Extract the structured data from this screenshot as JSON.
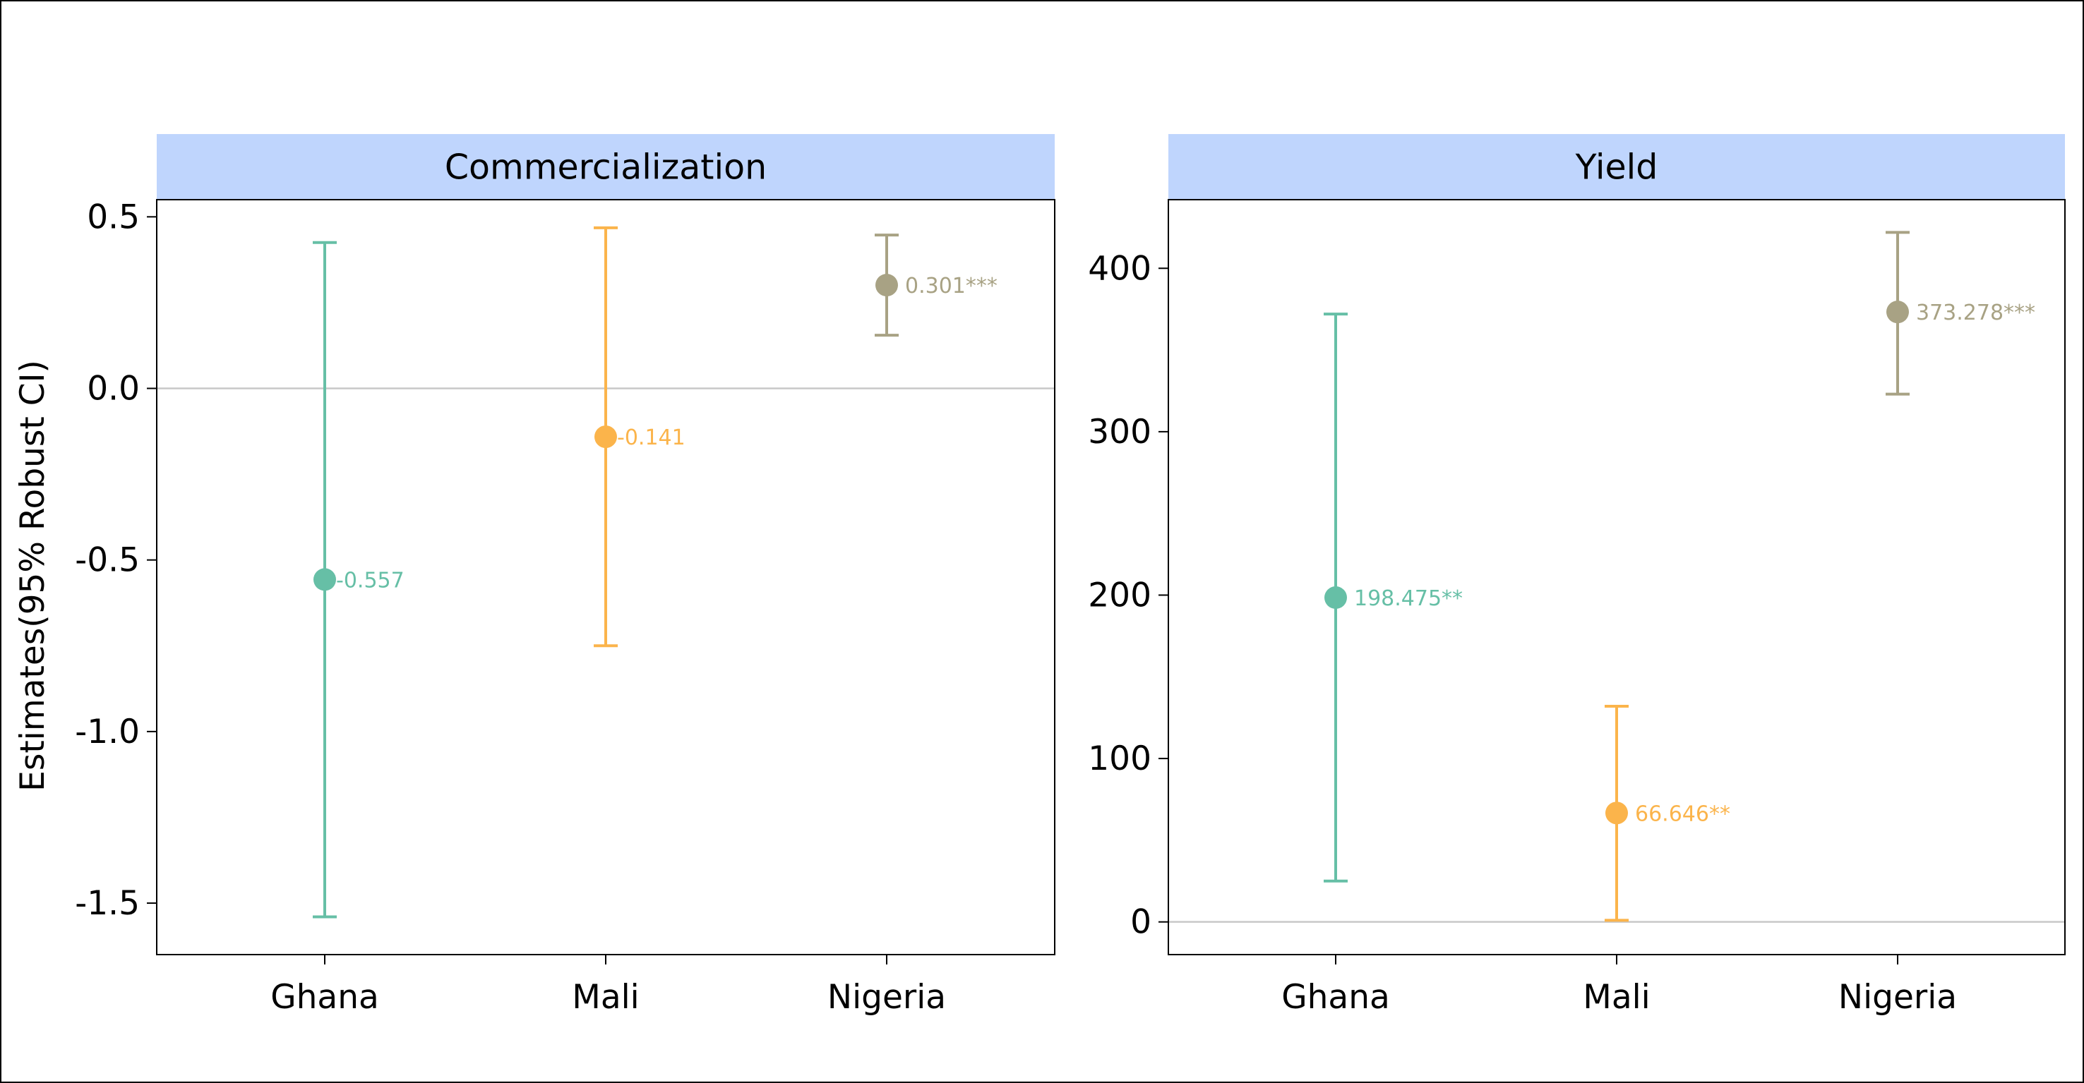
{
  "chart_data": {
    "type": "errorbar",
    "ylabel": "Estimates(95% Robust CI)",
    "categories": [
      "Ghana",
      "Mali",
      "Nigeria"
    ],
    "colors": {
      "Ghana": "#66bfa6",
      "Mali": "#fbb44b",
      "Nigeria": "#a8a284"
    },
    "grid": false,
    "panels": [
      {
        "title": "Commercialization",
        "ylim": [
          -1.65,
          0.55
        ],
        "yticks": [
          0.5,
          0.0,
          -0.5,
          -1.0,
          -1.5
        ],
        "ytick_labels": [
          "0.5",
          "0.0",
          "-0.5",
          "-1.0",
          "-1.5"
        ],
        "points": [
          {
            "category": "Ghana",
            "estimate": -0.557,
            "ci_low": -1.54,
            "ci_high": 0.425,
            "label": "-0.557"
          },
          {
            "category": "Mali",
            "estimate": -0.141,
            "ci_low": -0.75,
            "ci_high": 0.468,
            "label": "-0.141"
          },
          {
            "category": "Nigeria",
            "estimate": 0.301,
            "ci_low": 0.155,
            "ci_high": 0.447,
            "label": "0.301***"
          }
        ]
      },
      {
        "title": "Yield",
        "ylim": [
          -20,
          442
        ],
        "yticks": [
          400,
          300,
          200,
          100,
          0
        ],
        "ytick_labels": [
          "400",
          "300",
          "200",
          "100",
          "0"
        ],
        "points": [
          {
            "category": "Ghana",
            "estimate": 198.475,
            "ci_low": 25,
            "ci_high": 372,
            "label": "198.475**"
          },
          {
            "category": "Mali",
            "estimate": 66.646,
            "ci_low": 1,
            "ci_high": 132,
            "label": "66.646**"
          },
          {
            "category": "Nigeria",
            "estimate": 373.278,
            "ci_low": 323,
            "ci_high": 422,
            "label": "373.278***"
          }
        ]
      }
    ]
  }
}
